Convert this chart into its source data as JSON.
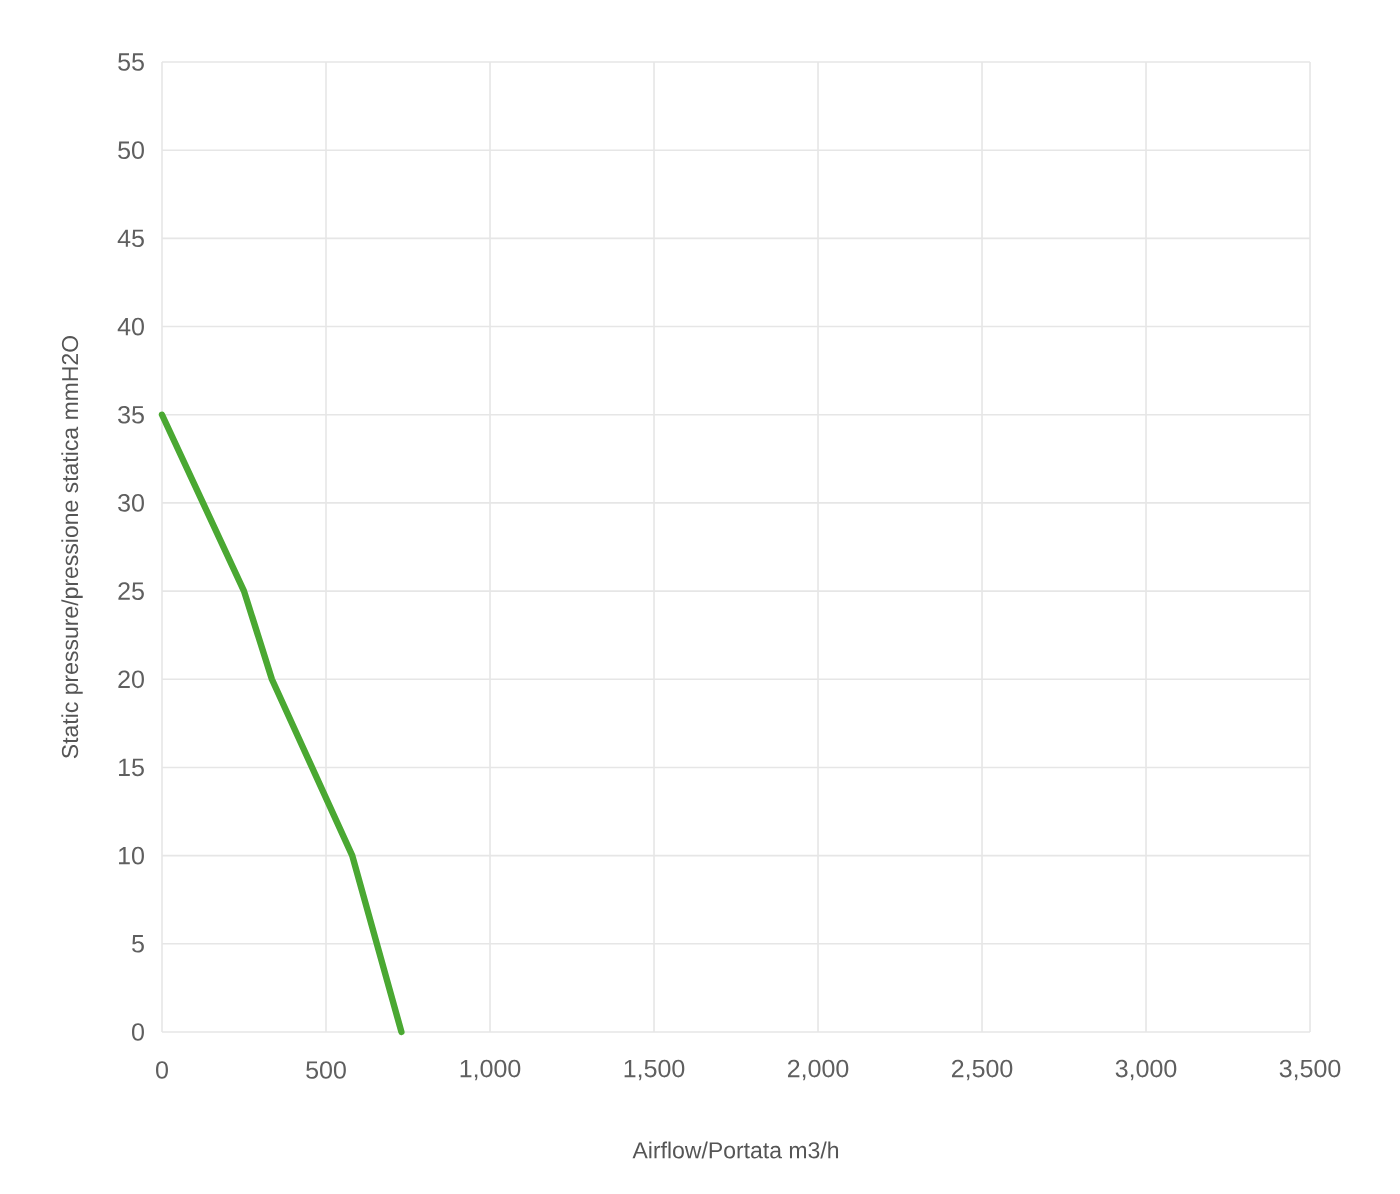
{
  "chart_data": {
    "type": "line",
    "xlabel": "Airflow/Portata m3/h",
    "ylabel": "Static pressure/pressione statica mmH2O",
    "x": [
      0,
      250,
      335,
      580,
      730
    ],
    "values": [
      35,
      25,
      20,
      10,
      0
    ],
    "color": "#4aa832",
    "xlim": [
      0,
      3500
    ],
    "xticks": [
      0,
      500,
      {
        "value": 1000,
        "label": "1,000"
      },
      {
        "value": 1500,
        "label": "1,500"
      },
      {
        "value": 2000,
        "label": "2,000"
      },
      {
        "value": 2500,
        "label": "2,500"
      },
      {
        "value": 3000,
        "label": "3,000"
      },
      {
        "value": 3500,
        "label": "3,500"
      }
    ],
    "ylim": [
      0,
      55
    ],
    "yticks": [
      0,
      5,
      10,
      15,
      20,
      25,
      30,
      35,
      40,
      45,
      50,
      55
    ],
    "grid": true,
    "line_style": "solid"
  }
}
